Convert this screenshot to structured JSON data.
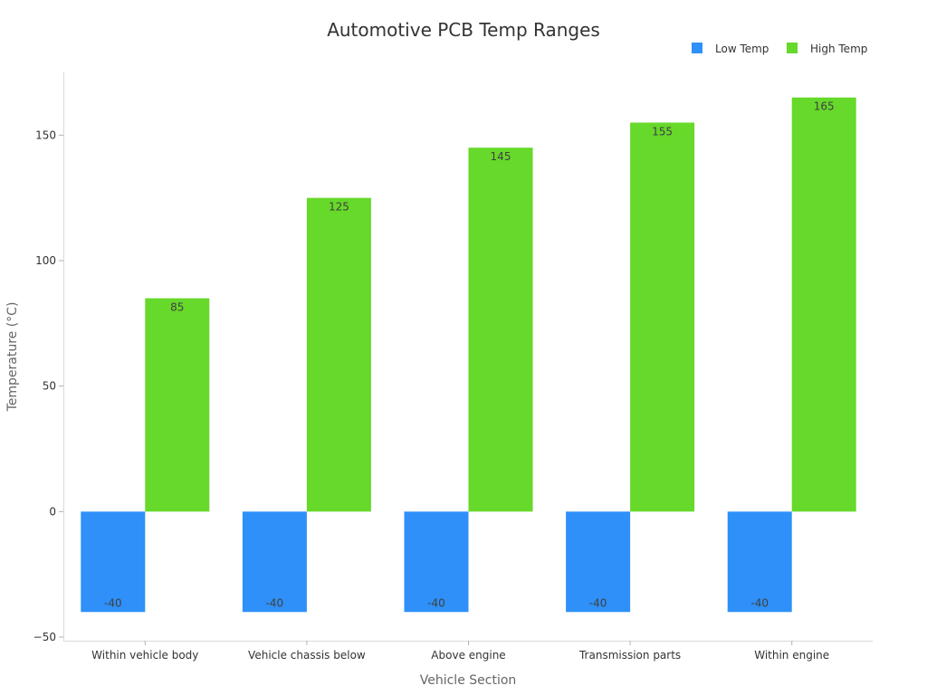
{
  "chart_data": {
    "type": "bar",
    "title": "Automotive PCB Temp Ranges",
    "xlabel": "Vehicle Section",
    "ylabel": "Temperature (°C)",
    "categories": [
      "Within vehicle body",
      "Vehicle chassis below",
      "Above engine",
      "Transmission parts",
      "Within engine"
    ],
    "series": [
      {
        "name": "Low Temp",
        "color": "#2e90f8",
        "values": [
          -40,
          -40,
          -40,
          -40,
          -40
        ]
      },
      {
        "name": "High Temp",
        "color": "#66d92a",
        "values": [
          85,
          125,
          145,
          155,
          165
        ]
      }
    ],
    "ylim": [
      -50,
      175
    ],
    "yticks": [
      -50,
      0,
      50,
      100,
      150
    ],
    "ytick_labels": [
      "−50",
      "0",
      "50",
      "100",
      "150"
    ],
    "grid": false,
    "legend_position": "top-right",
    "data_labels": true
  }
}
